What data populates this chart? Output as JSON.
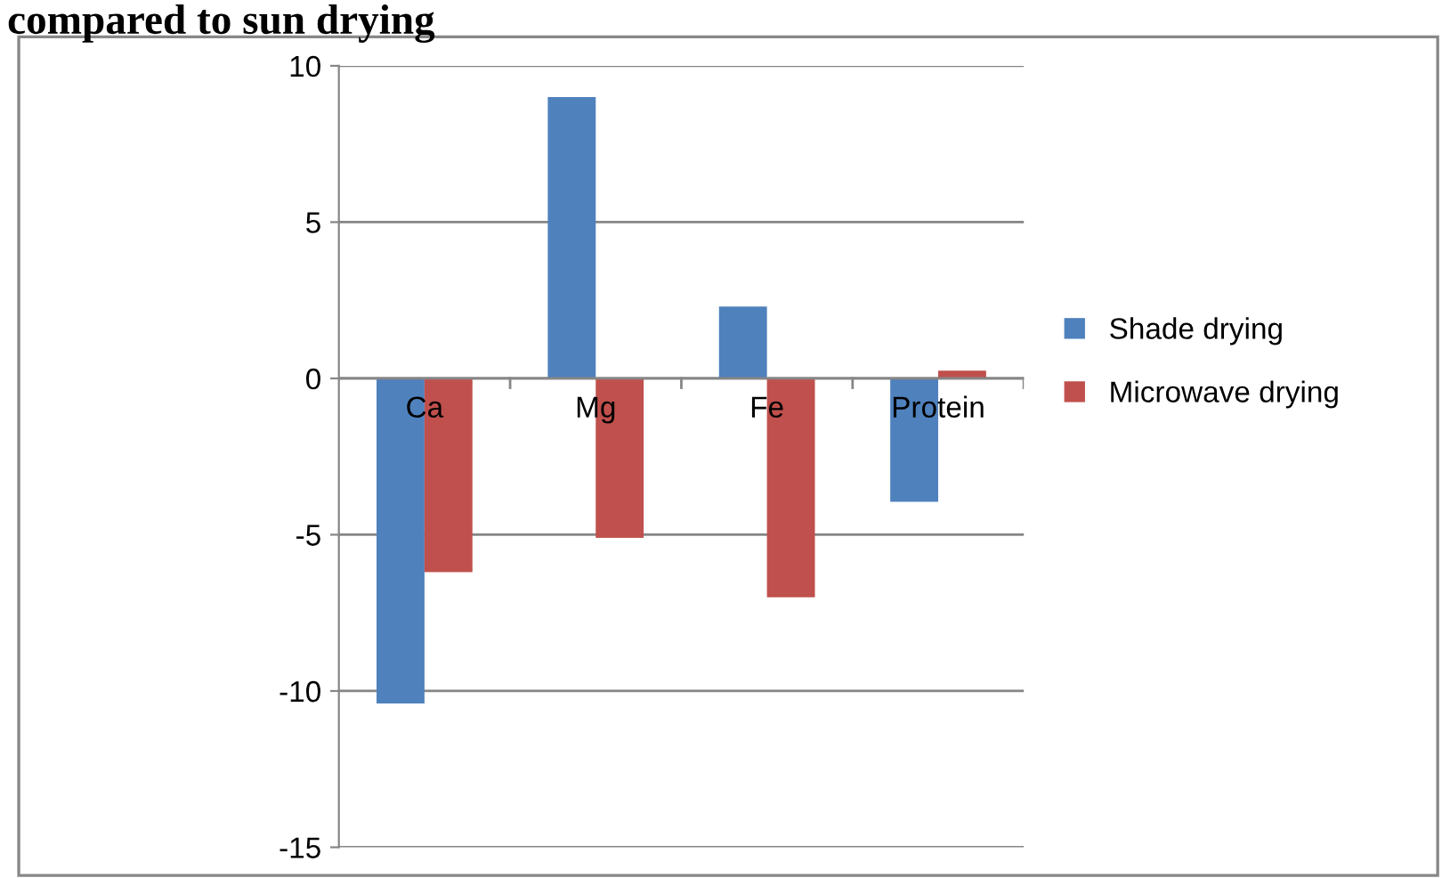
{
  "chart_data": {
    "type": "bar",
    "title": "compared to sun drying",
    "categories": [
      "Ca",
      "Mg",
      "Fe",
      "Protein"
    ],
    "series": [
      {
        "name": "Shade drying",
        "color": "#4f81bd",
        "values": [
          -10.4,
          9.0,
          2.3,
          -3.95
        ]
      },
      {
        "name": "Microwave drying",
        "color": "#c0504d",
        "values": [
          -6.2,
          -5.1,
          -7.0,
          0.25
        ]
      }
    ],
    "ylim": [
      -15,
      10
    ],
    "yticks": [
      -15,
      -10,
      -5,
      0,
      5,
      10
    ],
    "grid": "y",
    "legend": "right"
  }
}
